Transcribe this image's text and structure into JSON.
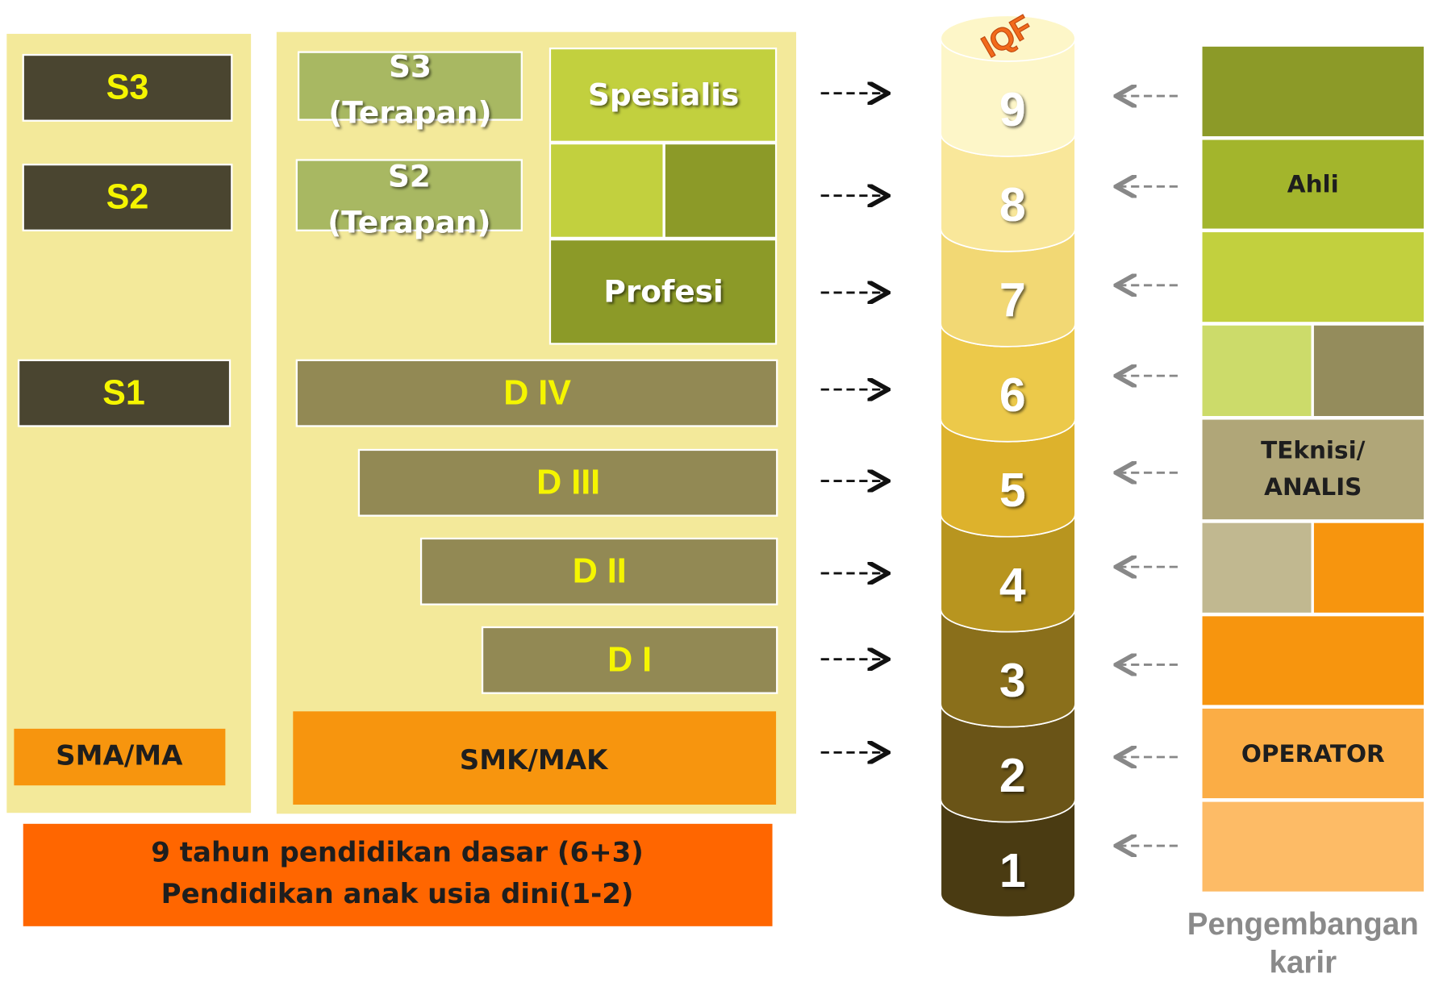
{
  "academic": {
    "s3": "S3",
    "s2": "S2",
    "s1": "S1",
    "secondary": "SMA/MA"
  },
  "vocational": {
    "s3_applied": [
      "S3",
      "(Terapan)"
    ],
    "s2_applied": [
      "S2",
      "(Terapan)"
    ],
    "specialist": "Spesialis",
    "profession": "Profesi",
    "d4": "D IV",
    "d3": "D III",
    "d2": "D II",
    "d1": "D I",
    "secondary": "SMK/MAK"
  },
  "basic": [
    "9 tahun pendidikan dasar (6+3)",
    "Pendidikan anak usia dini(1-2)"
  ],
  "iqf": {
    "logo": "IQF",
    "levels": [
      1,
      2,
      3,
      4,
      5,
      6,
      7,
      8,
      9
    ]
  },
  "career": {
    "expert": "Ahli",
    "technician": [
      "TEknisi/",
      "ANALIS"
    ],
    "operator": "OPERATOR",
    "caption": [
      "Pengembangan",
      "karir"
    ]
  }
}
